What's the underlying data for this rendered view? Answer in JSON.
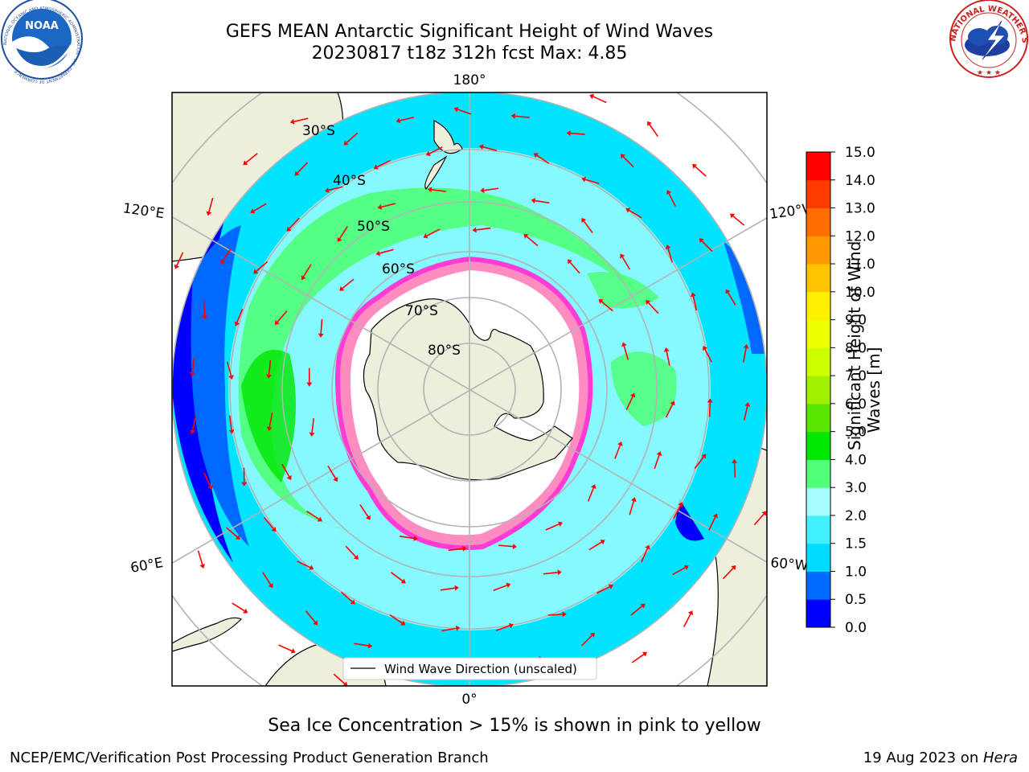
{
  "header": {
    "title_line1": "GEFS MEAN Antarctic Significant Height of Wind Waves",
    "title_line2": "20230817 t18z 312h fcst   Max: 4.85"
  },
  "logos": {
    "noaa": {
      "text": "NOAA",
      "ring_text": "NATIONAL OCEANIC AND ATMOSPHERIC ADMINISTRATION · U.S. DEPARTMENT OF COMMERCE"
    },
    "nws": {
      "ring_text": "NATIONAL WEATHER SERVICE"
    }
  },
  "map": {
    "projection": "south-polar-stereographic",
    "longitude_labels": {
      "top": "180°",
      "bottom": "0°",
      "left_upper": "120°E",
      "left_lower": "60°E",
      "right_upper": "120°W",
      "right_lower": "60°W"
    },
    "latitude_labels": [
      "30°S",
      "40°S",
      "50°S",
      "60°S",
      "70°S",
      "80°S"
    ],
    "legend": "Wind Wave Direction (unscaled)",
    "arrow_color": "#ff0000",
    "land_color": "#eeeedd",
    "ice_colors": [
      "#ff3bd6",
      "#ff8cc0",
      "#ffd24a"
    ]
  },
  "colorbar": {
    "label_line1": "Significant Height of Wind",
    "label_line2": "Waves [m]",
    "ticks": [
      "0.0",
      "0.5",
      "1.0",
      "1.5",
      "2.0",
      "3.0",
      "4.0",
      "5.0",
      "6.0",
      "7.0",
      "8.0",
      "9.0",
      "10.0",
      "11.0",
      "12.0",
      "13.0",
      "14.0",
      "15.0"
    ],
    "colors": [
      "#0000ff",
      "#0068ff",
      "#00dcff",
      "#40f0ff",
      "#a8fcff",
      "#50ff78",
      "#00e600",
      "#58e600",
      "#a0f000",
      "#ccff00",
      "#f0ff00",
      "#fff000",
      "#ffc400",
      "#ff9800",
      "#ff6c00",
      "#ff3c00",
      "#ff0000"
    ]
  },
  "caption": "Sea Ice Concentration > 15% is shown in pink to yellow",
  "footer": {
    "left": "NCEP/EMC/Verification Post Processing Product Generation Branch",
    "right_prefix": "19 Aug 2023 on ",
    "right_system": "Hera"
  }
}
